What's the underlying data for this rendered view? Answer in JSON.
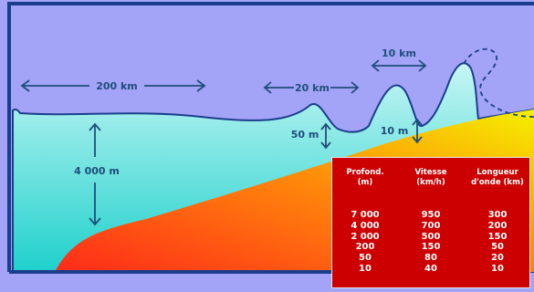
{
  "labels": {
    "width_ocean": "200 km",
    "width_coast": "20 km",
    "width_crest": "10 km",
    "depth_ocean": "4 000 m",
    "depth_shelf": "50 m",
    "depth_shore": "10 m"
  },
  "colors": {
    "sky": "#a3a3f7",
    "water_top": "#c6f6f4",
    "water_bottom": "#1fd0cc",
    "seabed_top": "#f5e800",
    "seabed_bottom": "#ff2a1a",
    "frame": "#1b3e8c",
    "label": "#1f4e7a",
    "table_bg": "#cc0000"
  },
  "table": {
    "headers": [
      [
        "Profond.",
        "(m)"
      ],
      [
        "Vitesse",
        "(km/h)"
      ],
      [
        "Longueur",
        "d'onde (km)"
      ]
    ],
    "rows": [
      [
        "7 000",
        "950",
        "300"
      ],
      [
        "4 000",
        "700",
        "200"
      ],
      [
        "2 000",
        "500",
        "150"
      ],
      [
        "200",
        "150",
        "50"
      ],
      [
        "50",
        "80",
        "20"
      ],
      [
        "10",
        "40",
        "10"
      ]
    ]
  }
}
